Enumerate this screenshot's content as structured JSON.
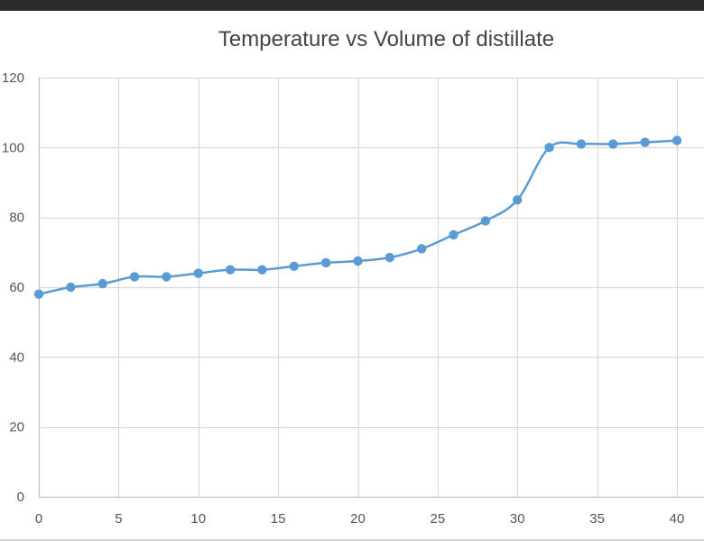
{
  "chart_data": {
    "type": "line",
    "title": "Temperature vs Volume of distillate",
    "xlabel": "",
    "ylabel": "",
    "xlim": [
      0,
      40
    ],
    "ylim": [
      0,
      120
    ],
    "x_ticks": [
      0,
      5,
      10,
      15,
      20,
      25,
      30,
      35,
      40
    ],
    "y_ticks": [
      0,
      20,
      40,
      60,
      80,
      100,
      120
    ],
    "grid": true,
    "smooth": true,
    "markers": true,
    "legend": "none",
    "series": [
      {
        "color": "#5b9bd5",
        "x": [
          0,
          2,
          4,
          6,
          8,
          10,
          12,
          14,
          16,
          18,
          20,
          22,
          24,
          26,
          28,
          30,
          32,
          34,
          36,
          38,
          40
        ],
        "y": [
          58,
          60,
          61,
          63,
          63,
          64,
          65,
          65,
          66,
          67,
          67.5,
          68.5,
          71,
          75,
          79,
          85,
          100,
          101,
          101,
          101.5,
          102
        ]
      }
    ]
  }
}
